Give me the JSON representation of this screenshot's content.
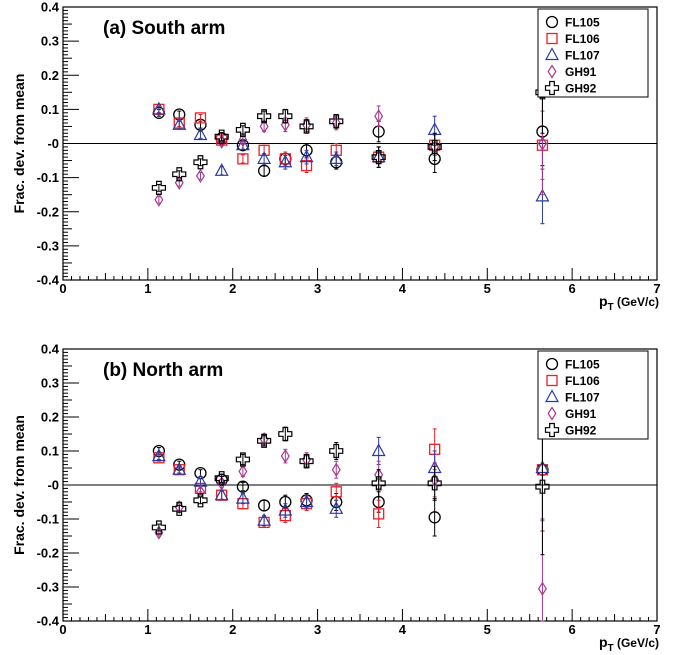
{
  "chart_data": [
    {
      "type": "scatter",
      "title": "(a) South arm",
      "xlabel": "p_T (GeV/c)",
      "ylabel": "Frac. dev. from mean",
      "xlim": [
        0,
        7
      ],
      "ylim": [
        -0.4,
        0.4
      ],
      "x_ticks": [
        "0",
        "1",
        "2",
        "3",
        "4",
        "5",
        "6",
        "7"
      ],
      "y_ticks": [
        "-0.4",
        "-0.3",
        "-0.2",
        "-0.1",
        "-0",
        "0.1",
        "0.2",
        "0.3",
        "0.4"
      ],
      "reference_line": 0,
      "legend_position": "top-right",
      "series": [
        {
          "name": "FL105",
          "color": "#000000",
          "marker": "circle",
          "x": [
            1.13,
            1.37,
            1.62,
            1.87,
            2.12,
            2.37,
            2.62,
            2.87,
            3.22,
            3.72,
            4.38,
            5.65
          ],
          "y": [
            0.09,
            0.085,
            0.055,
            0.015,
            -0.005,
            -0.08,
            -0.045,
            -0.02,
            -0.055,
            0.035,
            -0.045,
            0.035
          ],
          "err": [
            0.01,
            0.01,
            0.01,
            0.01,
            0.012,
            0.015,
            0.015,
            0.02,
            0.02,
            0.03,
            0.04,
            0.1
          ]
        },
        {
          "name": "FL106",
          "color": "#e8212a",
          "marker": "square",
          "x": [
            1.13,
            1.37,
            1.62,
            1.87,
            2.12,
            2.37,
            2.62,
            2.87,
            3.22,
            3.72,
            4.38,
            5.65
          ],
          "y": [
            0.1,
            0.06,
            0.075,
            0.01,
            -0.045,
            -0.02,
            -0.045,
            -0.065,
            -0.02,
            -0.04,
            -0.005,
            -0.005
          ],
          "err": [
            0.01,
            0.01,
            0.01,
            0.01,
            0.012,
            0.015,
            0.02,
            0.02,
            0.02,
            0.03,
            0.03,
            0.1
          ]
        },
        {
          "name": "FL107",
          "color": "#2b3aa0",
          "marker": "triangle",
          "x": [
            1.13,
            1.37,
            1.62,
            1.87,
            2.12,
            2.37,
            2.62,
            2.87,
            3.22,
            3.72,
            4.38,
            5.65
          ],
          "y": [
            0.1,
            0.055,
            0.025,
            -0.08,
            -0.005,
            -0.045,
            -0.055,
            -0.04,
            -0.045,
            -0.04,
            0.04,
            -0.155
          ],
          "err": [
            0.01,
            0.01,
            0.01,
            0.012,
            0.012,
            0.015,
            0.02,
            0.02,
            0.02,
            0.03,
            0.04,
            0.08
          ]
        },
        {
          "name": "GH91",
          "color": "#a6388f",
          "marker": "diamond",
          "x": [
            1.13,
            1.37,
            1.62,
            1.87,
            2.12,
            2.37,
            2.62,
            2.87,
            3.22,
            3.72,
            4.38,
            5.65
          ],
          "y": [
            -0.165,
            -0.115,
            -0.095,
            0.005,
            0.01,
            0.05,
            0.055,
            0.055,
            0.06,
            0.08,
            -0.01,
            0.0
          ],
          "err": [
            0.01,
            0.01,
            0.01,
            0.012,
            0.012,
            0.015,
            0.02,
            0.02,
            0.02,
            0.03,
            0.04,
            0.15
          ]
        },
        {
          "name": "GH92",
          "color": "#000000",
          "marker": "cross",
          "x": [
            1.13,
            1.37,
            1.62,
            1.87,
            2.12,
            2.37,
            2.62,
            2.87,
            3.22,
            3.72,
            4.38,
            5.65
          ],
          "y": [
            -0.13,
            -0.09,
            -0.055,
            0.02,
            0.04,
            0.08,
            0.08,
            0.05,
            0.065,
            -0.04,
            -0.01,
            0.15
          ],
          "err": [
            0.01,
            0.01,
            0.01,
            0.012,
            0.012,
            0.015,
            0.02,
            0.02,
            0.02,
            0.03,
            0.04,
            0.12
          ]
        }
      ]
    },
    {
      "type": "scatter",
      "title": "(b) North arm",
      "xlabel": "p_T (GeV/c)",
      "ylabel": "Frac. dev. from mean",
      "xlim": [
        0,
        7
      ],
      "ylim": [
        -0.4,
        0.4
      ],
      "x_ticks": [
        "0",
        "1",
        "2",
        "3",
        "4",
        "5",
        "6",
        "7"
      ],
      "y_ticks": [
        "-0.4",
        "-0.3",
        "-0.2",
        "-0.1",
        "-0",
        "0.1",
        "0.2",
        "0.3",
        "0.4"
      ],
      "reference_line": 0,
      "legend_position": "top-right",
      "series": [
        {
          "name": "FL105",
          "color": "#000000",
          "marker": "circle",
          "x": [
            1.13,
            1.37,
            1.62,
            1.87,
            2.12,
            2.37,
            2.62,
            2.87,
            3.22,
            3.72,
            4.38,
            5.65
          ],
          "y": [
            0.1,
            0.06,
            0.035,
            0.015,
            -0.005,
            -0.06,
            -0.05,
            -0.045,
            -0.05,
            -0.05,
            -0.095,
            0.045
          ],
          "err": [
            0.01,
            0.01,
            0.01,
            0.01,
            0.012,
            0.015,
            0.02,
            0.02,
            0.025,
            0.03,
            0.055,
            0.18
          ]
        },
        {
          "name": "FL106",
          "color": "#e8212a",
          "marker": "square",
          "x": [
            1.13,
            1.37,
            1.62,
            1.87,
            2.12,
            2.37,
            2.62,
            2.87,
            3.22,
            3.72,
            4.38,
            5.65
          ],
          "y": [
            0.08,
            0.045,
            -0.01,
            -0.03,
            -0.055,
            -0.11,
            -0.09,
            -0.055,
            -0.02,
            -0.085,
            0.105,
            0.045
          ],
          "err": [
            0.01,
            0.01,
            0.01,
            0.012,
            0.015,
            0.015,
            0.02,
            0.02,
            0.025,
            0.04,
            0.06,
            0.18
          ]
        },
        {
          "name": "FL107",
          "color": "#2b3aa0",
          "marker": "triangle",
          "x": [
            1.13,
            1.37,
            1.62,
            1.87,
            2.12,
            2.37,
            2.62,
            2.87,
            3.22,
            3.72,
            4.38,
            5.65
          ],
          "y": [
            0.085,
            0.045,
            0.01,
            -0.03,
            -0.04,
            -0.105,
            -0.075,
            -0.05,
            -0.07,
            0.1,
            0.05,
            0.05
          ],
          "err": [
            0.01,
            0.01,
            0.01,
            0.012,
            0.015,
            0.015,
            0.02,
            0.02,
            0.025,
            0.04,
            0.05,
            0.15
          ]
        },
        {
          "name": "GH91",
          "color": "#a6388f",
          "marker": "diamond",
          "x": [
            1.13,
            1.37,
            1.62,
            1.87,
            2.12,
            2.37,
            2.62,
            2.87,
            3.22,
            3.72,
            4.38,
            5.65
          ],
          "y": [
            -0.14,
            -0.065,
            -0.02,
            0.005,
            0.04,
            0.135,
            0.085,
            0.075,
            0.045,
            0.03,
            0.015,
            -0.305
          ],
          "err": [
            0.01,
            0.01,
            0.01,
            0.012,
            0.015,
            0.015,
            0.02,
            0.02,
            0.025,
            0.04,
            0.05,
            0.2
          ]
        },
        {
          "name": "GH92",
          "color": "#000000",
          "marker": "cross",
          "x": [
            1.13,
            1.37,
            1.62,
            1.87,
            2.12,
            2.37,
            2.62,
            2.87,
            3.22,
            3.72,
            4.38,
            5.65
          ],
          "y": [
            -0.125,
            -0.07,
            -0.045,
            0.02,
            0.075,
            0.13,
            0.15,
            0.07,
            0.1,
            0.005,
            0.005,
            -0.005
          ],
          "err": [
            0.01,
            0.01,
            0.01,
            0.012,
            0.015,
            0.015,
            0.02,
            0.02,
            0.025,
            0.04,
            0.05,
            0.2
          ]
        }
      ]
    }
  ]
}
